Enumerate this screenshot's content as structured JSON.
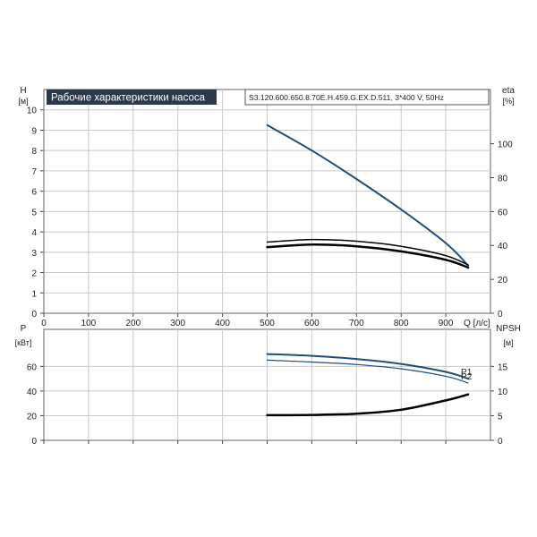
{
  "title": "Рабочие характеристики насоса",
  "model": "S3.120.600.650.8.70E.H.459.G.EX.D.511, 3*400 V, 50Hz",
  "colors": {
    "blue": "#1f4e79",
    "black": "#000000",
    "grid": "#c8c8c8",
    "title_bg": "#2b3a4a"
  },
  "chart_data": [
    {
      "type": "line",
      "name": "upper",
      "x": {
        "label": "Q [л/с]",
        "range": [
          0,
          1000
        ],
        "ticks": [
          0,
          100,
          200,
          300,
          400,
          500,
          600,
          700,
          800,
          900
        ]
      },
      "y_left": {
        "label_top": "H",
        "label_unit": "[м]",
        "range": [
          0,
          11
        ],
        "ticks": [
          0,
          1,
          2,
          3,
          4,
          5,
          6,
          7,
          8,
          9,
          10
        ]
      },
      "y_right": {
        "label_top": "eta",
        "label_unit": "[%]",
        "range": [
          0,
          132
        ],
        "ticks": [
          0,
          20,
          40,
          60,
          80,
          100
        ]
      },
      "grid": true,
      "series": [
        {
          "axis": "left",
          "color": "blue",
          "width": 2,
          "points": [
            [
              500,
              9.25
            ],
            [
              600,
              8.0
            ],
            [
              700,
              6.6
            ],
            [
              800,
              5.1
            ],
            [
              900,
              3.45
            ],
            [
              950,
              2.35
            ]
          ]
        },
        {
          "axis": "right",
          "color": "black",
          "width": 1.5,
          "points": [
            [
              500,
              42.0
            ],
            [
              600,
              43.5
            ],
            [
              700,
              42.5
            ],
            [
              800,
              39.5
            ],
            [
              900,
              34.0
            ],
            [
              950,
              28.5
            ]
          ]
        },
        {
          "axis": "right",
          "color": "black",
          "width": 2.5,
          "points": [
            [
              500,
              39.0
            ],
            [
              600,
              40.5
            ],
            [
              700,
              39.5
            ],
            [
              800,
              36.5
            ],
            [
              900,
              31.5
            ],
            [
              950,
              27.0
            ]
          ]
        }
      ]
    },
    {
      "type": "line",
      "name": "lower",
      "x": {
        "range": [
          0,
          1000
        ],
        "ticks": [
          0,
          100,
          200,
          300,
          400,
          500,
          600,
          700,
          800,
          900
        ]
      },
      "y_left": {
        "label_top": "P",
        "label_unit": "[кВт]",
        "range": [
          0,
          90
        ],
        "ticks": [
          0,
          20,
          40,
          60
        ]
      },
      "y_right": {
        "label_top": "NPSH",
        "label_unit": "[м]",
        "range": [
          0,
          22.5
        ],
        "ticks": [
          0,
          5,
          10,
          15
        ]
      },
      "grid": true,
      "series": [
        {
          "name": "P1",
          "axis": "left",
          "color": "blue",
          "width": 2,
          "points": [
            [
              500,
              70.0
            ],
            [
              600,
              68.5
            ],
            [
              700,
              66.0
            ],
            [
              800,
              62.0
            ],
            [
              900,
              55.5
            ],
            [
              950,
              50.0
            ]
          ]
        },
        {
          "name": "P2",
          "axis": "left",
          "color": "blue",
          "width": 1.2,
          "points": [
            [
              500,
              65.0
            ],
            [
              600,
              63.5
            ],
            [
              700,
              61.5
            ],
            [
              800,
              58.0
            ],
            [
              900,
              52.0
            ],
            [
              950,
              46.5
            ]
          ]
        },
        {
          "axis": "right",
          "color": "black",
          "width": 2.5,
          "points": [
            [
              500,
              5.1
            ],
            [
              600,
              5.15
            ],
            [
              700,
              5.4
            ],
            [
              800,
              6.2
            ],
            [
              900,
              8.1
            ],
            [
              950,
              9.3
            ]
          ]
        }
      ]
    }
  ]
}
